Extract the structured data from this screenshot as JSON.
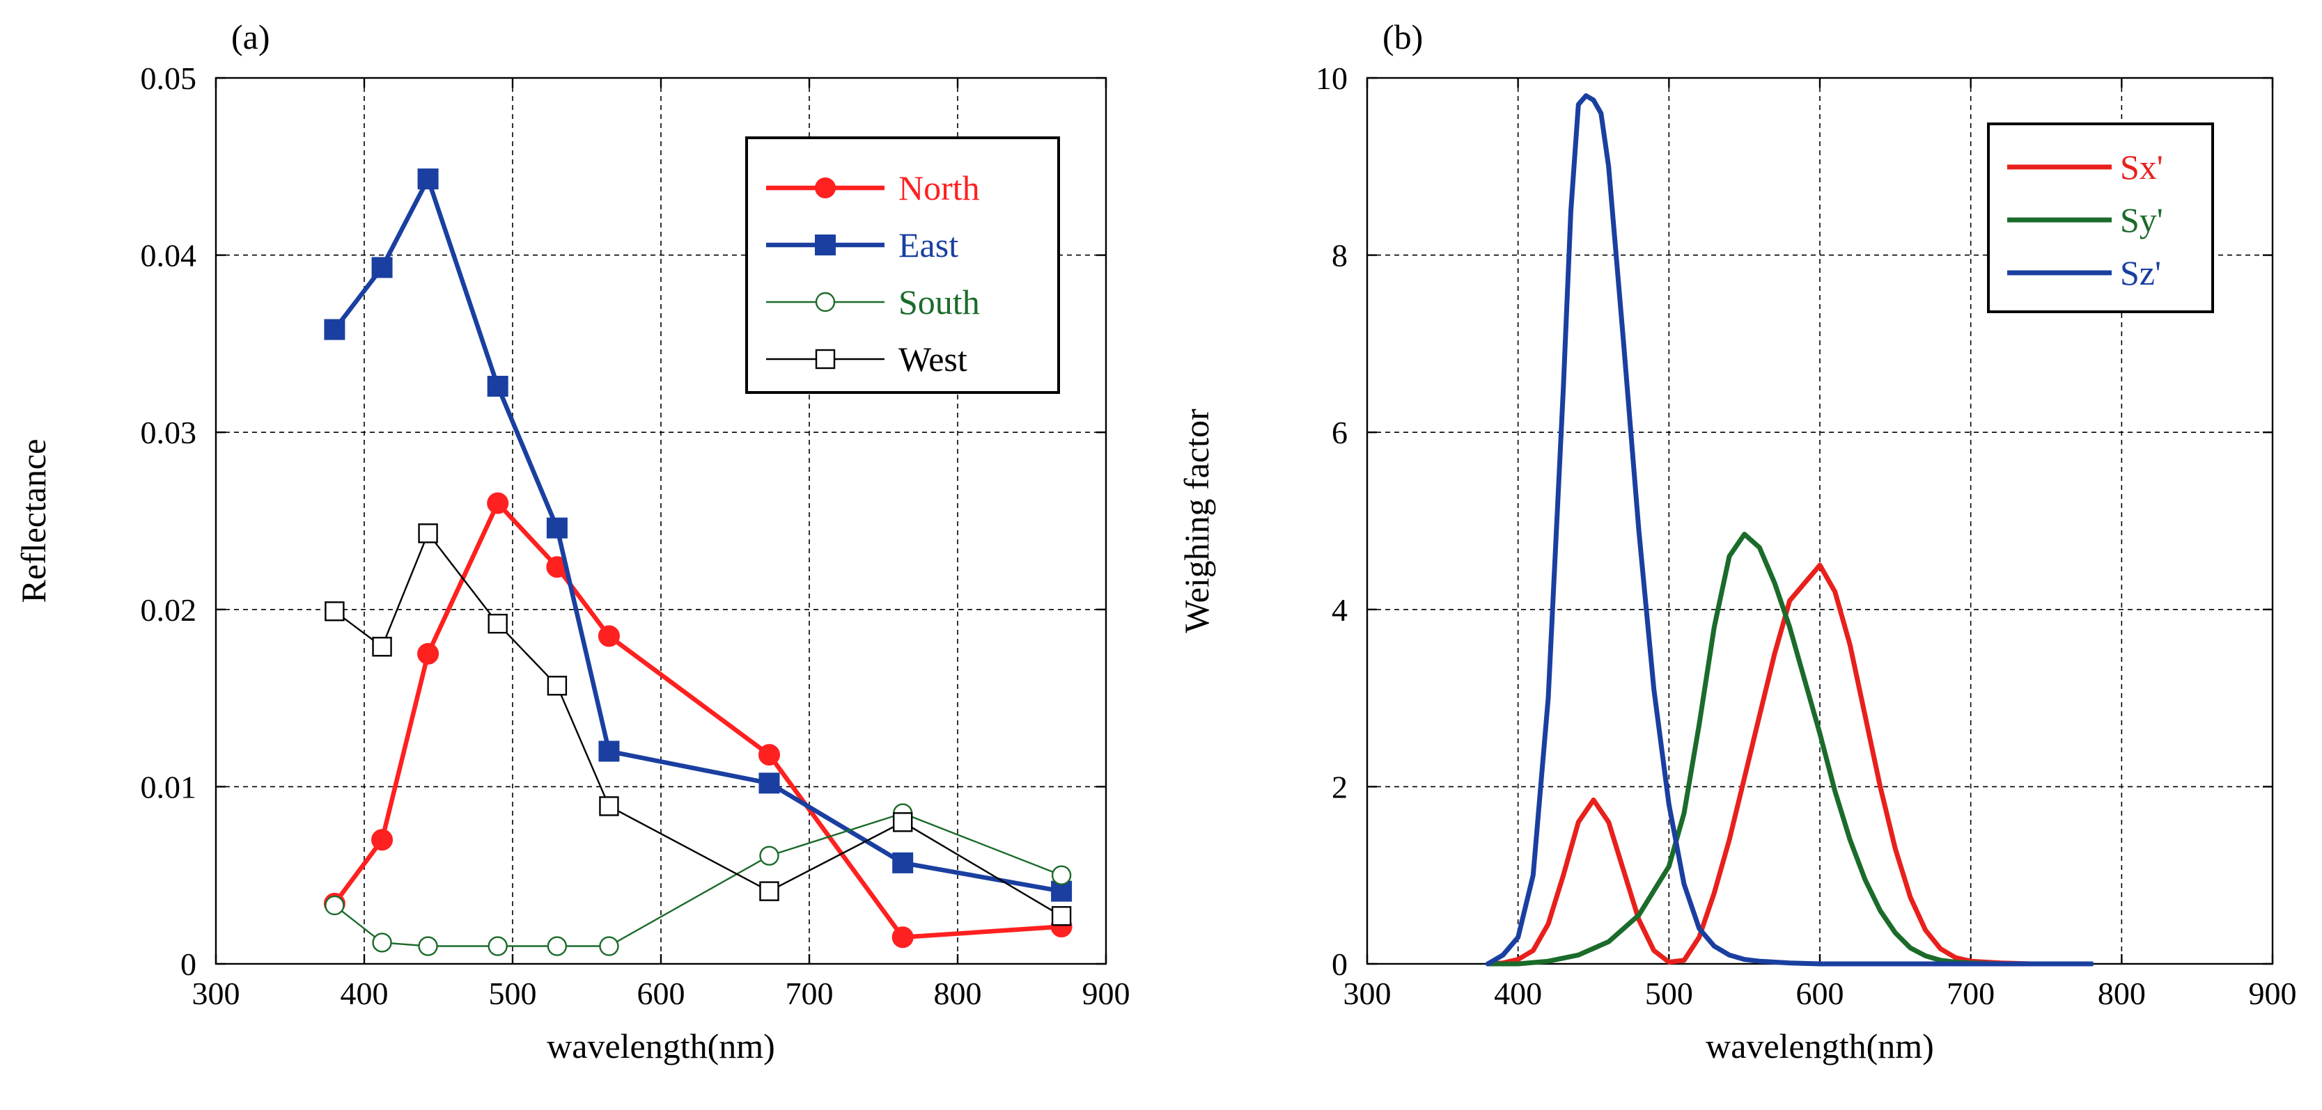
{
  "chart_data": [
    {
      "type": "line",
      "panel_label": "(a)",
      "xlabel": "wavelength(nm)",
      "ylabel": "Reflectance",
      "xlim": [
        300,
        900
      ],
      "ylim": [
        0,
        0.05
      ],
      "xticks": [
        300,
        400,
        500,
        600,
        700,
        800,
        900
      ],
      "yticks": [
        0,
        0.01,
        0.02,
        0.03,
        0.04,
        0.05
      ],
      "ytick_labels": [
        "0",
        "0.01",
        "0.02",
        "0.03",
        "0.04",
        "0.05"
      ],
      "grid": true,
      "legend_position": "top-right",
      "x": [
        380,
        412,
        443,
        490,
        530,
        565,
        673,
        763,
        870
      ],
      "series": [
        {
          "name": "North",
          "color": "#ff2020",
          "marker": "filled-circle",
          "line": "thick",
          "values": [
            0.0034,
            0.007,
            0.0175,
            0.026,
            0.0224,
            0.0185,
            0.0118,
            0.0015,
            0.0021
          ]
        },
        {
          "name": "East",
          "color": "#1a3fa0",
          "marker": "filled-square",
          "line": "thick",
          "values": [
            0.0358,
            0.0393,
            0.0443,
            0.0326,
            0.0246,
            0.012,
            0.0102,
            0.0057,
            0.0041
          ]
        },
        {
          "name": "South",
          "color": "#1b6b2a",
          "marker": "open-circle",
          "line": "thin",
          "values": [
            0.0033,
            0.0012,
            0.001,
            0.001,
            0.001,
            0.001,
            0.0061,
            0.0085,
            0.005
          ]
        },
        {
          "name": "West",
          "color": "#000000",
          "marker": "open-square",
          "line": "thin",
          "values": [
            0.0199,
            0.0179,
            0.0243,
            0.0192,
            0.0157,
            0.0089,
            0.0041,
            0.008,
            0.0027
          ]
        }
      ]
    },
    {
      "type": "line",
      "panel_label": "(b)",
      "xlabel": "wavelength(nm)",
      "ylabel": "Weighing factor",
      "xlim": [
        300,
        900
      ],
      "ylim": [
        0,
        10
      ],
      "xticks": [
        300,
        400,
        500,
        600,
        700,
        800,
        900
      ],
      "yticks": [
        0,
        2,
        4,
        6,
        8,
        10
      ],
      "ytick_labels": [
        "0",
        "2",
        "4",
        "6",
        "8",
        "10"
      ],
      "grid": true,
      "legend_position": "top-right",
      "series": [
        {
          "name": "Sx'",
          "color": "#e8201c",
          "x": [
            380,
            390,
            400,
            410,
            420,
            430,
            440,
            450,
            460,
            470,
            480,
            490,
            500,
            510,
            520,
            530,
            540,
            550,
            560,
            570,
            580,
            590,
            600,
            610,
            620,
            630,
            640,
            650,
            660,
            670,
            680,
            690,
            700,
            720,
            740,
            760,
            780
          ],
          "values": [
            0,
            0.01,
            0.05,
            0.15,
            0.45,
            1.0,
            1.6,
            1.85,
            1.6,
            1.05,
            0.5,
            0.15,
            0.02,
            0.04,
            0.3,
            0.8,
            1.4,
            2.1,
            2.8,
            3.5,
            4.1,
            4.3,
            4.5,
            4.2,
            3.6,
            2.8,
            2.0,
            1.3,
            0.75,
            0.38,
            0.17,
            0.07,
            0.03,
            0.01,
            0,
            0,
            0
          ]
        },
        {
          "name": "Sy'",
          "color": "#1b6b2a",
          "x": [
            380,
            400,
            420,
            440,
            460,
            480,
            500,
            510,
            520,
            530,
            540,
            550,
            560,
            570,
            580,
            590,
            600,
            610,
            620,
            630,
            640,
            650,
            660,
            670,
            680,
            690,
            700,
            720,
            740,
            760,
            780
          ],
          "values": [
            0,
            0,
            0.03,
            0.1,
            0.25,
            0.55,
            1.1,
            1.7,
            2.7,
            3.8,
            4.6,
            4.85,
            4.7,
            4.3,
            3.8,
            3.2,
            2.6,
            1.95,
            1.4,
            0.95,
            0.6,
            0.35,
            0.18,
            0.09,
            0.04,
            0.02,
            0.01,
            0,
            0,
            0,
            0
          ]
        },
        {
          "name": "Sz'",
          "color": "#1a3fa0",
          "x": [
            380,
            390,
            400,
            410,
            420,
            430,
            435,
            440,
            445,
            450,
            455,
            460,
            465,
            470,
            480,
            490,
            500,
            510,
            520,
            530,
            540,
            550,
            560,
            580,
            600,
            650,
            700,
            750,
            780
          ],
          "values": [
            0,
            0.1,
            0.3,
            1.0,
            3.0,
            6.5,
            8.5,
            9.7,
            9.8,
            9.75,
            9.6,
            9.0,
            8.0,
            7.0,
            4.9,
            3.1,
            1.8,
            0.9,
            0.4,
            0.2,
            0.1,
            0.05,
            0.03,
            0.01,
            0,
            0,
            0,
            0,
            0
          ]
        }
      ]
    }
  ]
}
